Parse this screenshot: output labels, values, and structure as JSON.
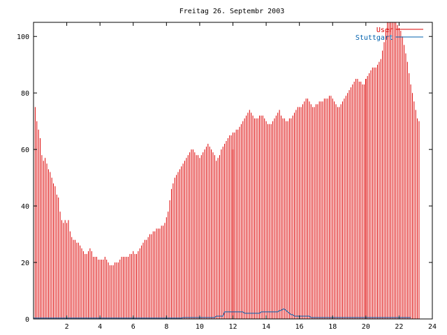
{
  "chart_data": {
    "type": "bar",
    "title": "Freitag 26. Septembr 2003",
    "xlabel": "",
    "ylabel": "",
    "xlim": [
      0,
      24
    ],
    "ylim": [
      0,
      105
    ],
    "x_ticks": [
      2,
      4,
      6,
      8,
      10,
      12,
      14,
      16,
      18,
      20,
      22,
      24
    ],
    "y_ticks": [
      0,
      20,
      40,
      60,
      80,
      100
    ],
    "grid": false,
    "legend_position": "top-right",
    "series": [
      {
        "name": "User",
        "color": "#dd0000",
        "sample_interval_hours": 0.1,
        "first_x": 0.0,
        "values": [
          77,
          75,
          70,
          67,
          64,
          58,
          56,
          57,
          55,
          53,
          52,
          50,
          48,
          47,
          44,
          43,
          38,
          35,
          34,
          35,
          34,
          35,
          31,
          29,
          28,
          28,
          27,
          27,
          26,
          25,
          24,
          23,
          23,
          24,
          25,
          24,
          22,
          22,
          22,
          21,
          21,
          21,
          21,
          22,
          21,
          20,
          19,
          19,
          19,
          20,
          20,
          20,
          21,
          22,
          22,
          22,
          22,
          22,
          23,
          23,
          24,
          23,
          23,
          24,
          25,
          26,
          27,
          28,
          28,
          29,
          30,
          30,
          31,
          31,
          32,
          32,
          32,
          33,
          33,
          34,
          36,
          38,
          42,
          46,
          48,
          50,
          51,
          52,
          53,
          54,
          55,
          56,
          57,
          58,
          59,
          60,
          60,
          59,
          58,
          58,
          57,
          58,
          59,
          60,
          61,
          62,
          61,
          60,
          59,
          58,
          56,
          57,
          58,
          60,
          61,
          62,
          63,
          64,
          65,
          65,
          66,
          66,
          67,
          67,
          68,
          69,
          70,
          71,
          72,
          73,
          74,
          73,
          72,
          71,
          71,
          71,
          72,
          72,
          72,
          71,
          70,
          69,
          69,
          69,
          70,
          71,
          72,
          73,
          74,
          72,
          71,
          71,
          70,
          70,
          71,
          71,
          72,
          73,
          74,
          75,
          75,
          75,
          76,
          77,
          78,
          78,
          77,
          76,
          75,
          75,
          76,
          76,
          77,
          77,
          77,
          78,
          78,
          78,
          79,
          79,
          78,
          77,
          76,
          75,
          75,
          76,
          77,
          78,
          79,
          80,
          81,
          82,
          83,
          84,
          85,
          85,
          84,
          84,
          83,
          83,
          84,
          86,
          87,
          88,
          89,
          89,
          89,
          90,
          91,
          92,
          95,
          98,
          102,
          105,
          106,
          106,
          106,
          105,
          105,
          104,
          103,
          102,
          100,
          97,
          94,
          91,
          87,
          83,
          80,
          77,
          74,
          71,
          70
        ]
      },
      {
        "name": "Stuttgart",
        "color": "#0060ad",
        "sample_interval_hours": 0.1,
        "first_x": 0.0,
        "values": [
          0.3,
          0.3,
          0.3,
          0.3,
          0.3,
          0.3,
          0.3,
          0.3,
          0.3,
          0.3,
          0.3,
          0.3,
          0.3,
          0.3,
          0.3,
          0.3,
          0.3,
          0.3,
          0.3,
          0.3,
          0.3,
          0.3,
          0.3,
          0.3,
          0.3,
          0.3,
          0.3,
          0.3,
          0.3,
          0.3,
          0.3,
          0.3,
          0.3,
          0.3,
          0.3,
          0.3,
          0.3,
          0.3,
          0.3,
          0.3,
          0.3,
          0.3,
          0.3,
          0.3,
          0.3,
          0.3,
          0.3,
          0.3,
          0.3,
          0.3,
          0.3,
          0.3,
          0.3,
          0.3,
          0.3,
          0.3,
          0.3,
          0.3,
          0.3,
          0.3,
          0.3,
          0.3,
          0.3,
          0.3,
          0.3,
          0.3,
          0.3,
          0.3,
          0.3,
          0.3,
          0.3,
          0.3,
          0.3,
          0.3,
          0.3,
          0.3,
          0.3,
          0.3,
          0.3,
          0.3,
          0.3,
          0.3,
          0.3,
          0.3,
          0.3,
          0.3,
          0.3,
          0.3,
          0.3,
          0.3,
          0.5,
          0.5,
          0.5,
          0.5,
          0.5,
          0.5,
          0.5,
          0.5,
          0.5,
          0.5,
          0.5,
          0.5,
          0.5,
          0.5,
          0.5,
          0.5,
          0.5,
          0.5,
          0.5,
          0.5,
          1,
          1,
          1,
          1,
          1,
          2.5,
          2.5,
          2.5,
          2.5,
          2.5,
          2.5,
          2.5,
          2.5,
          2.5,
          2.5,
          2.5,
          2.5,
          2,
          2,
          2,
          2,
          2,
          2,
          2,
          2,
          2,
          2,
          2.5,
          2.5,
          2.5,
          2.5,
          2.5,
          2.5,
          2.5,
          2.5,
          2.5,
          2.5,
          2.5,
          3,
          3,
          3.5,
          3.5,
          3,
          2.5,
          2,
          1.5,
          1.5,
          1,
          1,
          1,
          1,
          1,
          1,
          1,
          1,
          1,
          1,
          0.5,
          0.5,
          0.5,
          0.5,
          0.5,
          0.5,
          0.5,
          0.5,
          0.5,
          0.5,
          0.5,
          0.5,
          0.5,
          0.5,
          0.5,
          0.5,
          0.5,
          0.5,
          0.5,
          0.5,
          0.5,
          0.5,
          0.5,
          0.5,
          0.5,
          0.5,
          0.5,
          0.5,
          0.5,
          0.5,
          0.5,
          0.5,
          0.5,
          0.5,
          0.5,
          0.5,
          0.5,
          0.5,
          0.5,
          0.5,
          0.5,
          0.5,
          0.5,
          0.5,
          0.5,
          0.5,
          0.5,
          0.5,
          0.5,
          0.5,
          0.5,
          0.5,
          0.5,
          0.5,
          0.5,
          0.5,
          0.5,
          0.5,
          0.5,
          0.5,
          0.5
        ]
      }
    ],
    "markers": [
      {
        "x": 12.0,
        "y": 60,
        "color": "#dd0000"
      },
      {
        "x": 20.0,
        "y": 85,
        "color": "#dd0000"
      }
    ]
  }
}
